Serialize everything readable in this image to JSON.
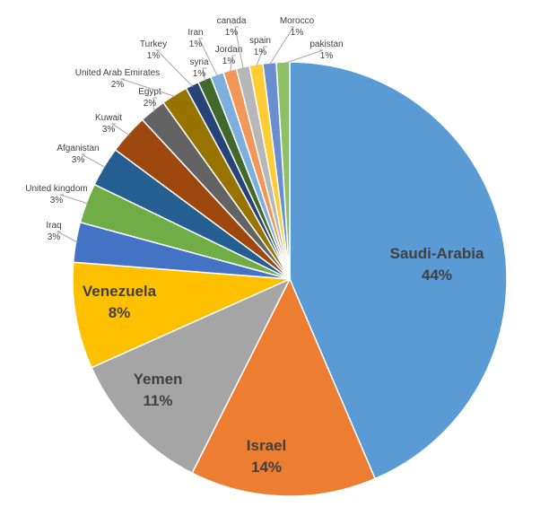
{
  "chart_data": {
    "type": "pie",
    "title": "",
    "start_angle_deg": 0,
    "direction": "clockwise",
    "legend": "none",
    "slices": [
      {
        "label": "Saudi-Arabia",
        "value": 44,
        "value_label": "44%",
        "color": "#5b9bd5",
        "label_position": "inside"
      },
      {
        "label": "Israel",
        "value": 14,
        "value_label": "14%",
        "color": "#ed7d31",
        "label_position": "inside"
      },
      {
        "label": "Yemen",
        "value": 11,
        "value_label": "11%",
        "color": "#a5a5a5",
        "label_position": "inside"
      },
      {
        "label": "Venezuela",
        "value": 8,
        "value_label": "8%",
        "color": "#ffc000",
        "label_position": "inside"
      },
      {
        "label": "Iraq",
        "value": 3,
        "value_label": "3%",
        "color": "#4472c4",
        "label_position": "outside"
      },
      {
        "label": "United kingdom",
        "value": 3,
        "value_label": "3%",
        "color": "#70ad47",
        "label_position": "outside"
      },
      {
        "label": "Afganistan",
        "value": 3,
        "value_label": "3%",
        "color": "#255e91",
        "label_position": "outside"
      },
      {
        "label": "Kuwait",
        "value": 3,
        "value_label": "3%",
        "color": "#9e480e",
        "label_position": "outside"
      },
      {
        "label": "Egypt",
        "value": 2,
        "value_label": "2%",
        "color": "#636363",
        "label_position": "outside"
      },
      {
        "label": "United Arab Emirates",
        "value": 2,
        "value_label": "2%",
        "color": "#997300",
        "label_position": "outside"
      },
      {
        "label": "Turkey",
        "value": 1,
        "value_label": "1%",
        "color": "#264478",
        "label_position": "outside"
      },
      {
        "label": "syria",
        "value": 1,
        "value_label": "1%",
        "color": "#43682b",
        "label_position": "outside"
      },
      {
        "label": "Iran",
        "value": 1,
        "value_label": "1%",
        "color": "#7cafdd",
        "label_position": "outside"
      },
      {
        "label": "Jordan",
        "value": 1,
        "value_label": "1%",
        "color": "#f1975a",
        "label_position": "outside"
      },
      {
        "label": "canada",
        "value": 1,
        "value_label": "1%",
        "color": "#b7b7b7",
        "label_position": "outside"
      },
      {
        "label": "spain",
        "value": 1,
        "value_label": "1%",
        "color": "#ffcd33",
        "label_position": "outside"
      },
      {
        "label": "Morocco",
        "value": 1,
        "value_label": "1%",
        "color": "#698ed0",
        "label_position": "outside"
      },
      {
        "label": "pakistan",
        "value": 1,
        "value_label": "1%",
        "color": "#8cc168",
        "label_position": "outside"
      }
    ]
  }
}
